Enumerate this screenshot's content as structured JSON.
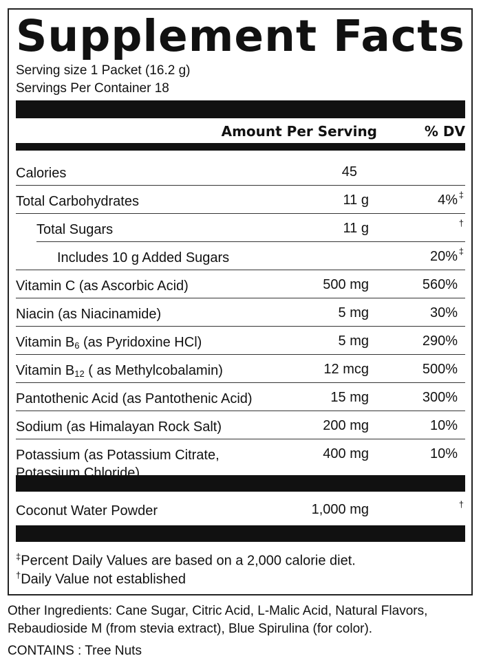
{
  "title": "Supplement Facts",
  "serving_size": "Serving size 1 Packet (16.2 g)",
  "servings_per_container": "Servings Per Container 18",
  "header": {
    "amount": "Amount Per Serving",
    "dv": "% DV"
  },
  "rows": [
    {
      "name": "Calories",
      "amount": "45",
      "dv": "",
      "mark": ""
    },
    {
      "name": "Total Carbohydrates",
      "amount": "11 g",
      "dv": "4%",
      "mark": "‡"
    },
    {
      "name": "Total Sugars",
      "amount": "11 g",
      "dv": "",
      "mark": "†"
    },
    {
      "name": "Includes 10 g  Added Sugars",
      "amount": "",
      "dv": "20%",
      "mark": "‡"
    },
    {
      "name": "Vitamin C (as Ascorbic Acid)",
      "amount": "500 mg",
      "dv": "560%",
      "mark": ""
    },
    {
      "name": "Niacin (as Niacinamide)",
      "amount": "5 mg",
      "dv": "30%",
      "mark": ""
    },
    {
      "name": "Vitamin B",
      "sub": "6",
      "suffix": " (as Pyridoxine HCl)",
      "amount": "5 mg",
      "dv": "290%",
      "mark": ""
    },
    {
      "name": "Vitamin B",
      "sub": "12",
      "suffix": " ( as Methylcobalamin)",
      "amount": "12 mcg",
      "dv": "500%",
      "mark": ""
    },
    {
      "name": "Pantothenic Acid (as Pantothenic Acid)",
      "amount": "15 mg",
      "dv": "300%",
      "mark": ""
    },
    {
      "name": "Sodium (as Himalayan Rock Salt)",
      "amount": "200 mg",
      "dv": "10%",
      "mark": ""
    },
    {
      "name": "Potassium (as Potassium Citrate,",
      "name2": "Potassium Chloride)",
      "amount": "400 mg",
      "dv": "10%",
      "mark": ""
    }
  ],
  "other_row": {
    "name": "Coconut Water Powder",
    "amount": "1,000 mg",
    "mark": "†"
  },
  "footnotes": [
    {
      "mark": "‡",
      "text": "Percent Daily Values are based on a 2,000 calorie diet."
    },
    {
      "mark": "†",
      "text": "Daily Value not established"
    }
  ],
  "other_ingredients": "Other Ingredients: Cane Sugar, Citric Acid, L-Malic Acid, Natural Flavors, Rebaudioside M (from stevia extract), Blue Spirulina (for color).",
  "contains": "CONTAINS : Tree Nuts"
}
